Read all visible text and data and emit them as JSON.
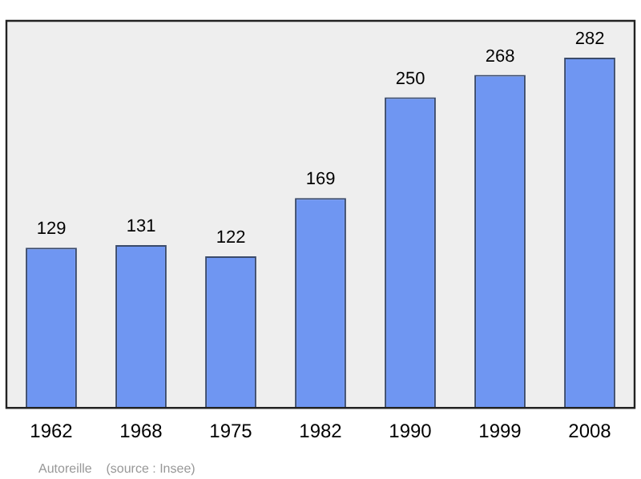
{
  "chart_data": {
    "type": "bar",
    "categories": [
      "1962",
      "1968",
      "1975",
      "1982",
      "1990",
      "1999",
      "2008"
    ],
    "values": [
      129,
      131,
      122,
      169,
      250,
      268,
      282
    ],
    "color": "#6f96f2",
    "data_labels": true,
    "grid": false,
    "legend": false,
    "annotations": [
      "Autoreille    (source : Insee)"
    ]
  }
}
